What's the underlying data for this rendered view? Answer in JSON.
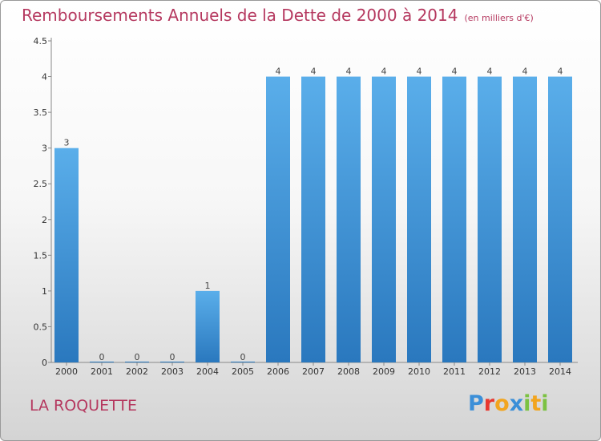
{
  "title": "Remboursements Annuels de la Dette de 2000 à 2014",
  "unit": "(en milliers d'€)",
  "commune": "LA ROQUETTE",
  "logo": {
    "text": "Proxiti",
    "colors": [
      "#3b8fd8",
      "#e8382f",
      "#f2a51f",
      "#3b8fd8",
      "#7cc242",
      "#f2a51f",
      "#7cc242"
    ]
  },
  "chart_data": {
    "type": "bar",
    "title": "Remboursements Annuels de la Dette de 2000 à 2014",
    "unit": "(en milliers d'€)",
    "categories": [
      "2000",
      "2001",
      "2002",
      "2003",
      "2004",
      "2005",
      "2006",
      "2007",
      "2008",
      "2009",
      "2010",
      "2011",
      "2012",
      "2013",
      "2014"
    ],
    "values": [
      3,
      0,
      0,
      0,
      1,
      0,
      4,
      4,
      4,
      4,
      4,
      4,
      4,
      4,
      4
    ],
    "value_labels": [
      "3",
      "0",
      "0",
      "0",
      "1",
      "0",
      "4",
      "4",
      "4",
      "4",
      "4",
      "4",
      "4",
      "4",
      "4"
    ],
    "ylim": [
      0,
      4.5
    ],
    "yticks": [
      "0",
      "0.5",
      "1",
      "1.5",
      "2",
      "2.5",
      "3",
      "3.5",
      "4",
      "4.5"
    ],
    "bar_color": "#4a9be0",
    "grid": false
  }
}
